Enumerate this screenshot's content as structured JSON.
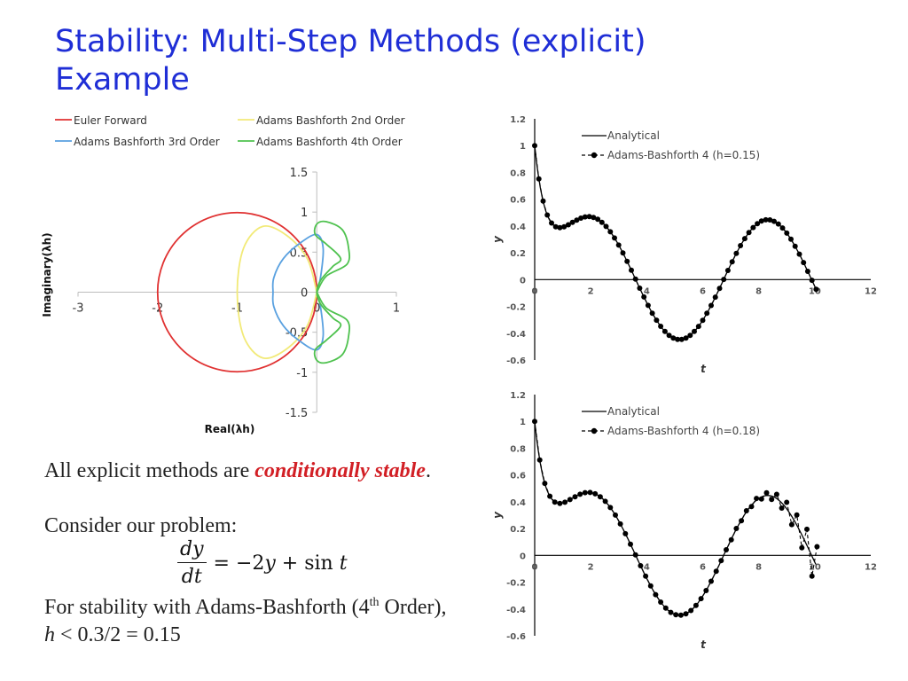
{
  "slide": {
    "title_line1": "Stability: Multi-Step Methods (explicit)",
    "title_line2": "Example",
    "text": {
      "line1_prefix": "All explicit methods are ",
      "line1_emph": "conditionally stable",
      "line1_suffix": ".",
      "line2": "Consider our problem:",
      "eq_num": "dy",
      "eq_den": "dt",
      "eq_rhs_a": "= −2",
      "eq_rhs_y": "y",
      "eq_rhs_b": " + sin ",
      "eq_rhs_t": "t",
      "line3_prefix": "For stability with Adams-Bashforth (4",
      "line3_sup": "th",
      "line3_suffix": " Order),",
      "line4_h": "h",
      "line4_rest": " < 0.3/2 = 0.15"
    }
  },
  "chart_data": [
    {
      "type": "line",
      "xlabel": "Real(λh)",
      "ylabel": "Imaginary(λh)",
      "xlim": [
        -3,
        1
      ],
      "ylim": [
        -1.5,
        1.5
      ],
      "xticks": [
        "-3",
        "-2",
        "-1",
        "0",
        "1"
      ],
      "yticks": [
        "1.5",
        "1",
        "0.5",
        "0",
        "-0.5",
        "-1",
        "-1.5"
      ],
      "legend_position": "top",
      "series": [
        {
          "name": "Euler Forward",
          "color": "#e03131",
          "curve": "circle",
          "center": [
            -1,
            0
          ],
          "radius": 1
        },
        {
          "name": "Adams Bashforth 2nd Order",
          "color": "#f2ea78",
          "x": [
            0,
            -0.12,
            -0.38,
            -0.68,
            -0.92,
            -1.0,
            -0.92,
            -0.68,
            -0.38,
            -0.12,
            0
          ],
          "y": [
            0,
            0.42,
            0.71,
            0.82,
            0.55,
            0,
            -0.55,
            -0.82,
            -0.71,
            -0.42,
            0
          ]
        },
        {
          "name": "Adams Bashforth 3rd Order",
          "color": "#5aa1e0",
          "x": [
            0,
            0.05,
            0.08,
            0,
            -0.2,
            -0.42,
            -0.54,
            -0.55,
            -0.54,
            -0.42,
            -0.2,
            0,
            0.08,
            0.05,
            0
          ],
          "y": [
            0,
            0.2,
            0.55,
            0.72,
            0.62,
            0.42,
            0.18,
            0,
            -0.18,
            -0.42,
            -0.62,
            -0.72,
            -0.55,
            -0.2,
            0
          ]
        },
        {
          "name": "Adams Bashforth 4th Order",
          "color": "#4fc24f",
          "x": [
            0,
            0.12,
            0.38,
            0.4,
            0.32,
            0.12,
            0.0,
            -0.02,
            0.12,
            0.3,
            0.2,
            0.05,
            0,
            0.05,
            0.2,
            0.3,
            0.12,
            -0.02,
            0.0,
            0.12,
            0.32,
            0.4,
            0.38,
            0.12,
            0
          ],
          "y": [
            0,
            0.2,
            0.35,
            0.55,
            0.78,
            0.88,
            0.85,
            0.72,
            0.6,
            0.42,
            0.32,
            0.15,
            0,
            -0.15,
            -0.32,
            -0.42,
            -0.6,
            -0.72,
            -0.85,
            -0.88,
            -0.78,
            -0.55,
            -0.35,
            -0.2,
            0
          ]
        }
      ]
    },
    {
      "type": "line",
      "xlabel": "t",
      "ylabel": "y",
      "xlim": [
        0,
        12
      ],
      "ylim": [
        -0.6,
        1.2
      ],
      "xticks": [
        "0",
        "2",
        "4",
        "6",
        "8",
        "10",
        "12"
      ],
      "yticks": [
        "1.2",
        "1",
        "0.8",
        "0.6",
        "0.4",
        "0.2",
        "0",
        "-0.2",
        "-0.4",
        "-0.6"
      ],
      "legend_position": "top-left",
      "series": [
        {
          "name": "Analytical",
          "style": "solid",
          "color": "#000000",
          "function": "y(t) = 1.2*exp(-2t) + (2 sin t - cos t)/5"
        },
        {
          "name": "Adams-Bashforth 4 (h=0.15)",
          "style": "dashed-markers",
          "color": "#000000",
          "h": 0.15,
          "t_start": 0,
          "t_end": 10.05
        }
      ]
    },
    {
      "type": "line",
      "xlabel": "t",
      "ylabel": "y",
      "xlim": [
        0,
        12
      ],
      "ylim": [
        -0.6,
        1.2
      ],
      "xticks": [
        "0",
        "2",
        "4",
        "6",
        "8",
        "10",
        "12"
      ],
      "yticks": [
        "1.2",
        "1",
        "0.8",
        "0.6",
        "0.4",
        "0.2",
        "0",
        "-0.2",
        "-0.4",
        "-0.6"
      ],
      "legend_position": "top-left",
      "series": [
        {
          "name": "Analytical",
          "style": "solid",
          "color": "#000000",
          "function": "y(t) = 1.2*exp(-2t) + (2 sin t - cos t)/5"
        },
        {
          "name": "Adams-Bashforth 4 (h=0.18)",
          "style": "dashed-markers",
          "color": "#000000",
          "h": 0.18,
          "t_start": 0,
          "t_end": 10.08,
          "oscillation_onset_t": 7.0
        }
      ]
    }
  ]
}
